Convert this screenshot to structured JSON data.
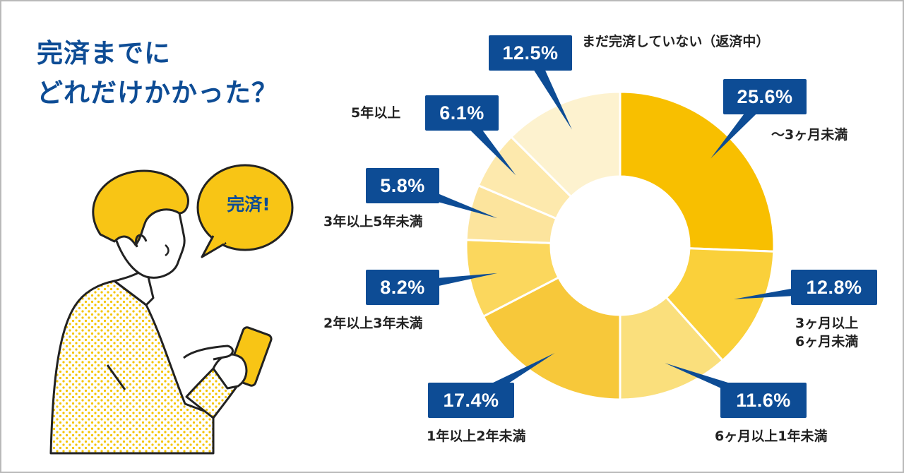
{
  "title": {
    "line1": "完済までに",
    "line2": "どれだけかかった？"
  },
  "bubble_text": "完済!",
  "colors": {
    "navy": "#0d4c95",
    "slice_colors": [
      "#f8bf00",
      "#fad03a",
      "#fadf7c",
      "#f7c83a",
      "#fbd75d",
      "#fce49d",
      "#fde9ad",
      "#fdf2cf"
    ]
  },
  "chart_data": {
    "type": "pie",
    "donut": true,
    "categories": [
      "〜3ヶ月未満",
      "3ヶ月以上6ヶ月未満",
      "6ヶ月以上1年未満",
      "1年以上2年未満",
      "2年以上3年未満",
      "3年以上5年未満",
      "5年以上",
      "まだ完済していない（返済中）"
    ],
    "values": [
      25.6,
      12.8,
      11.6,
      17.4,
      8.2,
      5.8,
      6.1,
      12.5
    ],
    "value_labels": [
      "25.6%",
      "12.8%",
      "11.6%",
      "17.4%",
      "8.2%",
      "5.8%",
      "6.1%",
      "12.5%"
    ],
    "label_lines": [
      [
        "〜3ヶ月未満"
      ],
      [
        "3ヶ月以上",
        "6ヶ月未満"
      ],
      [
        "6ヶ月以上1年未満"
      ],
      [
        "1年以上2年未満"
      ],
      [
        "2年以上3年未満"
      ],
      [
        "3年以上5年未満"
      ],
      [
        "5年以上"
      ],
      [
        "まだ完済していない（返済中）"
      ]
    ],
    "start": "top",
    "direction": "clockwise"
  }
}
